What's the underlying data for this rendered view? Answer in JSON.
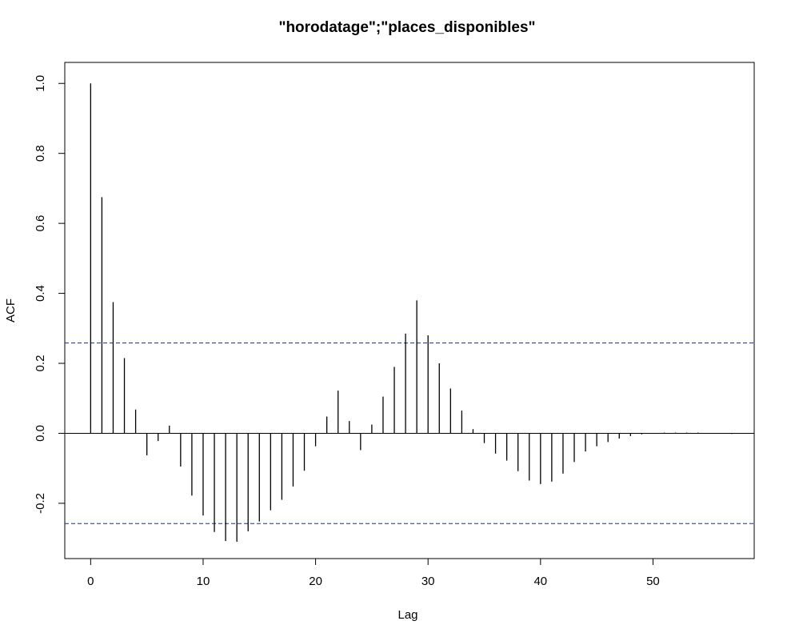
{
  "chart_data": {
    "type": "bar",
    "title": "\"horodatage\";\"places_disponibles\"",
    "xlabel": "Lag",
    "ylabel": "ACF",
    "xlim": [
      -2.3,
      59
    ],
    "ylim": [
      -0.358,
      1.06
    ],
    "x_ticks": [
      0,
      10,
      20,
      30,
      40,
      50
    ],
    "y_ticks": [
      -0.2,
      0.0,
      0.2,
      0.4,
      0.6,
      0.8,
      1.0
    ],
    "x_tick_labels": [
      "0",
      "10",
      "20",
      "30",
      "40",
      "50"
    ],
    "y_tick_labels": [
      "-0.2",
      "0.0",
      "0.2",
      "0.4",
      "0.6",
      "0.8",
      "1.0"
    ],
    "confidence_bound": 0.258,
    "zero_line": true,
    "grid": false,
    "lags": [
      0,
      1,
      2,
      3,
      4,
      5,
      6,
      7,
      8,
      9,
      10,
      11,
      12,
      13,
      14,
      15,
      16,
      17,
      18,
      19,
      20,
      21,
      22,
      23,
      24,
      25,
      26,
      27,
      28,
      29,
      30,
      31,
      32,
      33,
      34,
      35,
      36,
      37,
      38,
      39,
      40,
      41,
      42,
      43,
      44,
      45,
      46,
      47,
      48,
      49,
      50,
      51,
      52,
      53,
      54,
      55,
      56,
      57
    ],
    "values": [
      1.0,
      0.675,
      0.375,
      0.215,
      0.068,
      -0.063,
      -0.022,
      0.022,
      -0.095,
      -0.178,
      -0.235,
      -0.282,
      -0.308,
      -0.31,
      -0.28,
      -0.252,
      -0.22,
      -0.19,
      -0.152,
      -0.107,
      -0.037,
      0.048,
      0.122,
      0.035,
      -0.048,
      0.025,
      0.105,
      0.19,
      0.285,
      0.38,
      0.28,
      0.2,
      0.128,
      0.065,
      0.012,
      -0.028,
      -0.058,
      -0.078,
      -0.108,
      -0.135,
      -0.145,
      -0.138,
      -0.115,
      -0.082,
      -0.052,
      -0.037,
      -0.025,
      -0.015,
      -0.008,
      -0.003,
      0.0,
      0.002,
      0.002,
      0.002,
      0.002,
      0.0,
      0.0,
      -0.002
    ]
  }
}
